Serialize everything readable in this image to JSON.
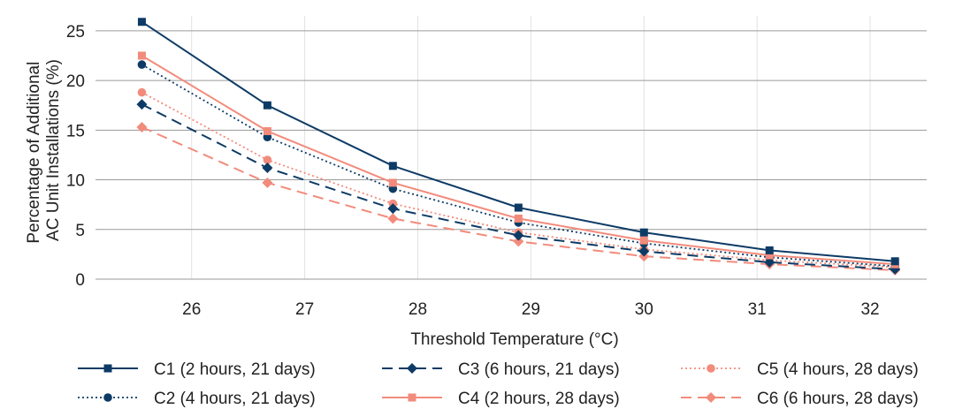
{
  "chart_data": {
    "type": "line",
    "xlabel": "Threshold Temperature (°C)",
    "ylabel": [
      "Percentage of Additional",
      "AC Unit Installations (%)"
    ],
    "xlim": [
      25.15,
      32.5
    ],
    "ylim": [
      0,
      26.5
    ],
    "xticks": [
      26,
      27,
      28,
      29,
      30,
      31,
      32
    ],
    "yticks": [
      0,
      5,
      10,
      15,
      20,
      25
    ],
    "grid": true,
    "legend_position": "bottom",
    "x": [
      25.56,
      26.67,
      27.78,
      28.89,
      30.0,
      31.11,
      32.22
    ],
    "series": [
      {
        "name": "C1 (2 hours, 21 days)",
        "color": "#0d3b66",
        "dash": "solid",
        "marker": "square",
        "values": [
          25.9,
          17.5,
          11.4,
          7.2,
          4.7,
          2.9,
          1.8
        ]
      },
      {
        "name": "C2 (4 hours, 21 days)",
        "color": "#0d3b66",
        "dash": "dotted",
        "marker": "circle",
        "values": [
          21.6,
          14.3,
          9.1,
          5.7,
          3.6,
          2.2,
          1.3
        ]
      },
      {
        "name": "C3 (6 hours, 21 days)",
        "color": "#0d3b66",
        "dash": "dashed",
        "marker": "diamond",
        "values": [
          17.6,
          11.2,
          7.1,
          4.4,
          2.8,
          1.7,
          1.0
        ]
      },
      {
        "name": "C4 (2 hours, 28 days)",
        "color": "#f28b7c",
        "dash": "solid",
        "marker": "square",
        "values": [
          22.5,
          14.9,
          9.7,
          6.1,
          3.9,
          2.4,
          1.5
        ]
      },
      {
        "name": "C5 (4 hours, 28 days)",
        "color": "#f28b7c",
        "dash": "dotted",
        "marker": "circle",
        "values": [
          18.8,
          12.0,
          7.6,
          4.7,
          3.0,
          1.9,
          1.2
        ]
      },
      {
        "name": "C6 (6 hours, 28 days)",
        "color": "#f28b7c",
        "dash": "dashed",
        "marker": "diamond",
        "values": [
          15.3,
          9.7,
          6.1,
          3.8,
          2.3,
          1.5,
          0.9
        ]
      }
    ]
  }
}
